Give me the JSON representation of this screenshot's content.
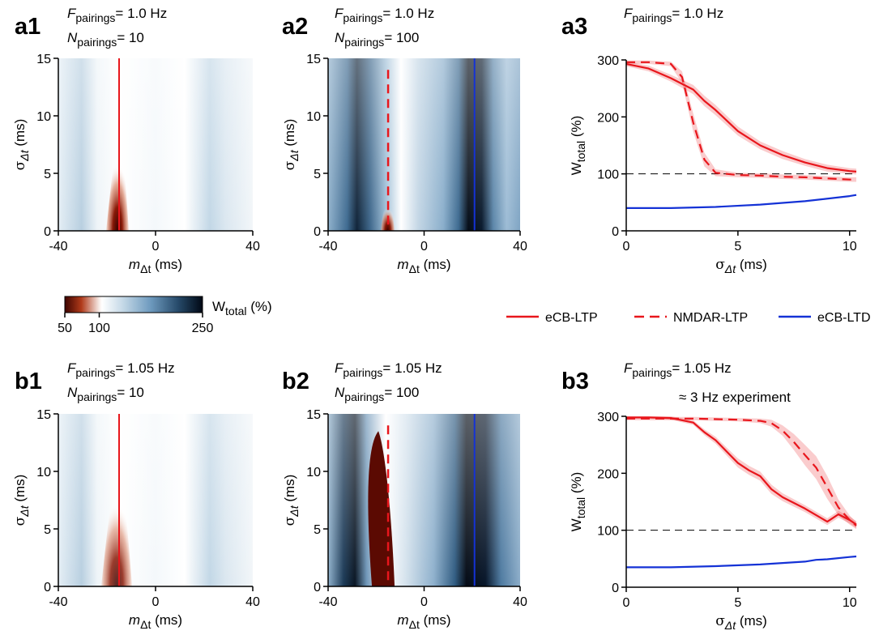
{
  "panels": {
    "a1": {
      "label": "a1",
      "freq": "= 1.0 Hz",
      "npair": "= 10"
    },
    "a2": {
      "label": "a2",
      "freq": "= 1.0 Hz",
      "npair": "= 100"
    },
    "a3": {
      "label": "a3",
      "freq": "= 1.0 Hz"
    },
    "b1": {
      "label": "b1",
      "freq": "= 1.05 Hz",
      "npair": "= 10"
    },
    "b2": {
      "label": "b2",
      "freq": "= 1.05 Hz",
      "npair": "= 100"
    },
    "b3": {
      "label": "b3",
      "freq": "= 1.05 Hz",
      "note": "≈ 3 Hz experiment"
    }
  },
  "symbols": {
    "F": "F",
    "N": "N",
    "pairings": "pairings",
    "m": "m",
    "sigma": "σ",
    "delta_t": "Δt",
    "W": "W",
    "total": "total",
    "unit_ms": " (ms)",
    "unit_pct": " (%)"
  },
  "colorbar": {
    "min": 50,
    "max": 250,
    "ticks": [
      "50",
      "100",
      "250"
    ],
    "stops": [
      [
        "#3d0400",
        0
      ],
      [
        "#b03a1a",
        0.12
      ],
      [
        "#f7ece8",
        0.25
      ],
      [
        "#ffffff",
        0.27
      ],
      [
        "#c5d9e7",
        0.42
      ],
      [
        "#6f9bbf",
        0.62
      ],
      [
        "#274b6b",
        0.82
      ],
      [
        "#000814",
        1
      ]
    ]
  },
  "legend": {
    "items": [
      {
        "name": "eCB-LTP",
        "color": "#e8161c",
        "dash": false
      },
      {
        "name": "NMDAR-LTP",
        "color": "#e8161c",
        "dash": true
      },
      {
        "name": "eCB-LTD",
        "color": "#1432d6",
        "dash": false
      }
    ]
  },
  "chart_data": [
    {
      "id": "a1",
      "type": "heatmap",
      "xlim": [
        -40,
        40
      ],
      "ylim": [
        0,
        15
      ],
      "xticks": [
        "-40",
        "0",
        "40"
      ],
      "yticks": [
        "0",
        "5",
        "10",
        "15"
      ],
      "eCB_LTP_m": -15
    },
    {
      "id": "a2",
      "type": "heatmap",
      "xlim": [
        -40,
        40
      ],
      "ylim": [
        0,
        15
      ],
      "xticks": [
        "-40",
        "0",
        "40"
      ],
      "yticks": [
        "0",
        "5",
        "10",
        "15"
      ],
      "NMDAR_LTP_m": -15,
      "NMDAR_LTP_sigma_max": 14,
      "eCB_LTD_m": 21
    },
    {
      "id": "b1",
      "type": "heatmap",
      "xlim": [
        -40,
        40
      ],
      "ylim": [
        0,
        15
      ],
      "xticks": [
        "-40",
        "0",
        "40"
      ],
      "yticks": [
        "0",
        "5",
        "10",
        "15"
      ],
      "eCB_LTP_m": -15
    },
    {
      "id": "b2",
      "type": "heatmap",
      "xlim": [
        -40,
        40
      ],
      "ylim": [
        0,
        15
      ],
      "xticks": [
        "-40",
        "0",
        "40"
      ],
      "yticks": [
        "0",
        "5",
        "10",
        "15"
      ],
      "NMDAR_LTP_m": -15,
      "NMDAR_LTP_sigma_max": 14,
      "eCB_LTD_m": 21
    },
    {
      "id": "a3",
      "type": "line",
      "xlim": [
        0,
        10.3
      ],
      "ylim": [
        0,
        300
      ],
      "xticks": [
        "0",
        "5",
        "10"
      ],
      "yticks": [
        "0",
        "100",
        "200",
        "300"
      ],
      "reference": 100,
      "series": [
        {
          "name": "eCB-LTP",
          "color": "#e8161c",
          "dash": false,
          "x": [
            0,
            1,
            2,
            3,
            3.5,
            4,
            5,
            6,
            7,
            8,
            9,
            10,
            10.3
          ],
          "y": [
            293,
            285,
            268,
            248,
            228,
            212,
            175,
            150,
            133,
            120,
            110,
            105,
            104
          ],
          "err": [
            4,
            5,
            6,
            8,
            9,
            9,
            8,
            7,
            7,
            6,
            6,
            5,
            5
          ]
        },
        {
          "name": "NMDAR-LTP",
          "color": "#e8161c",
          "dash": true,
          "x": [
            0,
            1,
            2,
            2.5,
            3,
            3.5,
            4,
            5,
            6,
            7,
            8,
            9,
            10,
            10.3
          ],
          "y": [
            296,
            296,
            293,
            270,
            190,
            125,
            102,
            98,
            97,
            95,
            94,
            92,
            90,
            90
          ],
          "err": [
            3,
            3,
            4,
            10,
            16,
            12,
            6,
            4,
            4,
            4,
            4,
            4,
            4,
            4
          ]
        },
        {
          "name": "eCB-LTD",
          "color": "#1432d6",
          "dash": false,
          "x": [
            0,
            2,
            4,
            6,
            8,
            10,
            10.3
          ],
          "y": [
            40,
            40,
            42,
            46,
            52,
            61,
            63
          ],
          "err": [
            1,
            1,
            1,
            1,
            1,
            1,
            1
          ]
        }
      ]
    },
    {
      "id": "b3",
      "type": "line",
      "xlim": [
        0,
        10.3
      ],
      "ylim": [
        0,
        300
      ],
      "xticks": [
        "0",
        "5",
        "10"
      ],
      "yticks": [
        "0",
        "100",
        "200",
        "300"
      ],
      "reference": 100,
      "series": [
        {
          "name": "eCB-LTP",
          "color": "#e8161c",
          "dash": false,
          "x": [
            0,
            1,
            2,
            3,
            3.5,
            4,
            4.5,
            5,
            5.5,
            6,
            6.5,
            7,
            8,
            9,
            9.5,
            10,
            10.3
          ],
          "y": [
            298,
            298,
            297,
            289,
            272,
            258,
            238,
            218,
            205,
            195,
            172,
            158,
            138,
            115,
            128,
            118,
            110
          ],
          "err": [
            2,
            2,
            3,
            4,
            5,
            6,
            7,
            8,
            8,
            8,
            8,
            7,
            6,
            6,
            6,
            6,
            6
          ]
        },
        {
          "name": "NMDAR-LTP",
          "color": "#e8161c",
          "dash": true,
          "x": [
            0,
            1,
            2,
            3,
            4,
            5,
            6,
            6.5,
            7,
            7.5,
            8,
            8.5,
            9,
            9.5,
            10,
            10.3
          ],
          "y": [
            296,
            296,
            296,
            296,
            295,
            294,
            292,
            288,
            275,
            255,
            232,
            210,
            175,
            140,
            118,
            108
          ],
          "err": [
            3,
            3,
            3,
            3,
            3,
            3,
            4,
            6,
            9,
            14,
            18,
            20,
            20,
            14,
            8,
            6
          ]
        },
        {
          "name": "eCB-LTD",
          "color": "#1432d6",
          "dash": false,
          "x": [
            0,
            2,
            4,
            6,
            8,
            8.5,
            9,
            10,
            10.3
          ],
          "y": [
            35,
            35,
            37,
            40,
            45,
            48,
            49,
            53,
            54
          ],
          "err": [
            1,
            1,
            1,
            1,
            1,
            1,
            1,
            1,
            1
          ]
        }
      ]
    }
  ]
}
